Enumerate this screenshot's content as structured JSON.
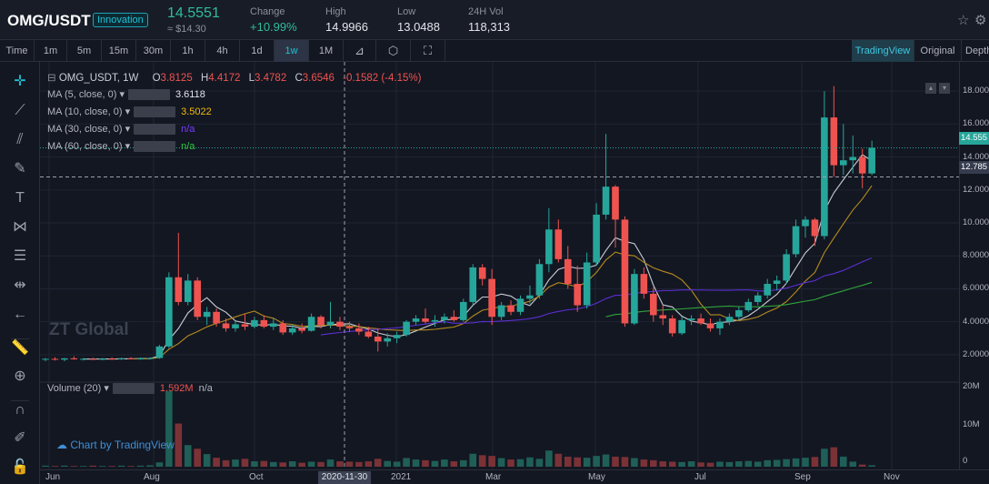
{
  "header": {
    "pair": "OMG/USDT",
    "badge": "Innovation",
    "price": "14.5551",
    "price_usd": "≈ $14.30",
    "stats": [
      {
        "label": "Change",
        "value": "+10.99%"
      },
      {
        "label": "High",
        "value": "14.9966"
      },
      {
        "label": "Low",
        "value": "13.0488"
      },
      {
        "label": "24H Vol",
        "value": "118,313"
      }
    ]
  },
  "toolbar": {
    "intervals": [
      "Time",
      "1m",
      "5m",
      "15m",
      "30m",
      "1h",
      "4h",
      "1d",
      "1w",
      "1M"
    ],
    "active_interval": "1w",
    "views": [
      "TradingView",
      "Original",
      "Depth"
    ]
  },
  "legend": {
    "symbol": "OMG_USDT, 1W",
    "o_label": "O",
    "o": "3.8125",
    "h_label": "H",
    "h": "4.4172",
    "l_label": "L",
    "l": "3.4782",
    "c_label": "C",
    "c": "3.6546",
    "change": "-0.1582 (-4.15%)"
  },
  "indicators": [
    {
      "label": "MA (5, close, 0)",
      "value": "3.6118",
      "color": "#e1e4ea"
    },
    {
      "label": "MA (10, close, 0)",
      "value": "3.5022",
      "color": "#f0b90b"
    },
    {
      "label": "MA (30, close, 0)",
      "value": "n/a",
      "color": "#7a3cff"
    },
    {
      "label": "MA (60, close, 0)",
      "value": "n/a",
      "color": "#2ecc40"
    }
  ],
  "volume_indicator": {
    "label": "Volume (20)",
    "value": "1.592M",
    "extra": "n/a"
  },
  "watermark": "ZT Global",
  "brand": "Chart by TradingView",
  "price_tags": {
    "last": "14.555",
    "crosshair": "12.785"
  },
  "y_axis_labels": [
    "18.0000",
    "16.0000",
    "14.0000",
    "12.0000",
    "10.0000",
    "8.0000",
    "6.0000",
    "4.0000",
    "2.0000"
  ],
  "vol_axis_labels": [
    "20M",
    "10M",
    "0"
  ],
  "x_axis_labels": [
    "Jun",
    "Aug",
    "Oct",
    "2021",
    "Mar",
    "May",
    "Jul",
    "Sep",
    "Nov"
  ],
  "x_selected": "2020-11-30",
  "colors": {
    "up": "#26a69a",
    "down": "#ef5350",
    "bg": "#131722",
    "accent": "#1fc0d4"
  },
  "chart_data": {
    "type": "candlestick",
    "interval": "1W",
    "ylim": [
      1,
      19
    ],
    "candles": [
      [
        1.7,
        1.8,
        1.6,
        1.75
      ],
      [
        1.75,
        1.85,
        1.65,
        1.7
      ],
      [
        1.7,
        1.8,
        1.6,
        1.78
      ],
      [
        1.78,
        1.9,
        1.7,
        1.72
      ],
      [
        1.72,
        1.8,
        1.65,
        1.75
      ],
      [
        1.75,
        1.82,
        1.68,
        1.73
      ],
      [
        1.73,
        1.8,
        1.66,
        1.76
      ],
      [
        1.76,
        1.84,
        1.7,
        1.74
      ],
      [
        1.74,
        1.82,
        1.68,
        1.78
      ],
      [
        1.78,
        1.85,
        1.72,
        1.75
      ],
      [
        1.75,
        1.83,
        1.7,
        1.77
      ],
      [
        1.77,
        1.85,
        1.7,
        1.8
      ],
      [
        1.8,
        2.6,
        1.75,
        2.5
      ],
      [
        2.5,
        7.0,
        2.4,
        6.7
      ],
      [
        6.7,
        9.4,
        5.0,
        5.2
      ],
      [
        5.2,
        6.9,
        5.0,
        6.5
      ],
      [
        6.5,
        6.7,
        4.1,
        4.3
      ],
      [
        4.3,
        4.9,
        3.8,
        4.6
      ],
      [
        4.6,
        4.8,
        3.7,
        3.9
      ],
      [
        3.9,
        4.2,
        3.4,
        3.6
      ],
      [
        3.6,
        4.0,
        3.4,
        3.85
      ],
      [
        3.85,
        4.5,
        3.5,
        3.7
      ],
      [
        3.7,
        4.3,
        3.6,
        4.1
      ],
      [
        4.1,
        4.4,
        3.6,
        3.7
      ],
      [
        3.7,
        4.2,
        3.5,
        3.9
      ],
      [
        3.9,
        4.1,
        3.2,
        3.35
      ],
      [
        3.35,
        3.8,
        3.2,
        3.6
      ],
      [
        3.6,
        3.9,
        3.3,
        3.45
      ],
      [
        3.45,
        4.5,
        3.4,
        4.3
      ],
      [
        4.3,
        4.4,
        3.6,
        3.8
      ],
      [
        3.8,
        5.2,
        3.6,
        4.0
      ],
      [
        4.0,
        4.3,
        3.5,
        3.7
      ],
      [
        3.7,
        4.0,
        3.4,
        3.6
      ],
      [
        3.6,
        3.9,
        3.2,
        3.4
      ],
      [
        3.4,
        3.7,
        3.0,
        3.1
      ],
      [
        3.1,
        3.6,
        2.2,
        2.8
      ],
      [
        2.8,
        3.3,
        2.5,
        3.0
      ],
      [
        3.0,
        3.4,
        2.7,
        3.2
      ],
      [
        3.2,
        4.1,
        3.1,
        4.0
      ],
      [
        4.0,
        4.4,
        3.8,
        4.2
      ],
      [
        4.2,
        4.8,
        3.9,
        4.0
      ],
      [
        4.0,
        4.4,
        3.7,
        4.1
      ],
      [
        4.1,
        4.5,
        3.9,
        4.3
      ],
      [
        4.3,
        4.7,
        4.0,
        4.1
      ],
      [
        4.1,
        5.4,
        4.0,
        5.2
      ],
      [
        5.2,
        7.5,
        5.0,
        7.3
      ],
      [
        7.3,
        7.5,
        6.2,
        6.6
      ],
      [
        6.6,
        7.2,
        3.8,
        4.3
      ],
      [
        4.3,
        5.2,
        4.1,
        5.0
      ],
      [
        5.0,
        5.3,
        4.4,
        4.6
      ],
      [
        4.6,
        5.6,
        4.4,
        5.4
      ],
      [
        5.4,
        6.2,
        5.1,
        5.6
      ],
      [
        5.6,
        7.8,
        5.4,
        7.5
      ],
      [
        7.5,
        10.9,
        7.0,
        9.6
      ],
      [
        9.6,
        10.2,
        7.6,
        7.8
      ],
      [
        7.8,
        8.6,
        6.0,
        6.3
      ],
      [
        6.3,
        7.4,
        4.6,
        5.0
      ],
      [
        5.0,
        8.2,
        4.8,
        7.6
      ],
      [
        7.6,
        11.2,
        7.4,
        10.5
      ],
      [
        10.5,
        15.4,
        10.2,
        12.2
      ],
      [
        12.2,
        12.3,
        8.5,
        10.2
      ],
      [
        10.2,
        10.4,
        3.7,
        3.9
      ],
      [
        3.9,
        7.2,
        3.8,
        6.9
      ],
      [
        6.9,
        7.3,
        5.4,
        5.7
      ],
      [
        5.7,
        6.1,
        4.0,
        4.4
      ],
      [
        4.4,
        5.0,
        3.8,
        4.2
      ],
      [
        4.2,
        4.4,
        3.1,
        3.3
      ],
      [
        3.3,
        4.3,
        3.2,
        4.1
      ],
      [
        4.1,
        4.4,
        3.8,
        4.2
      ],
      [
        4.2,
        4.5,
        3.8,
        3.9
      ],
      [
        3.9,
        4.2,
        3.4,
        3.6
      ],
      [
        3.6,
        4.2,
        3.2,
        4.0
      ],
      [
        4.0,
        4.5,
        3.8,
        4.3
      ],
      [
        4.3,
        4.9,
        4.1,
        4.7
      ],
      [
        4.7,
        5.4,
        4.6,
        5.2
      ],
      [
        5.2,
        5.8,
        5.0,
        5.6
      ],
      [
        5.6,
        6.6,
        5.4,
        6.3
      ],
      [
        6.3,
        6.8,
        5.9,
        6.5
      ],
      [
        6.5,
        8.4,
        6.3,
        8.1
      ],
      [
        8.1,
        10.2,
        7.9,
        9.8
      ],
      [
        9.8,
        10.4,
        9.1,
        10.2
      ],
      [
        10.2,
        10.3,
        8.6,
        9.2
      ],
      [
        9.2,
        18.0,
        9.0,
        16.4
      ],
      [
        16.4,
        18.3,
        12.8,
        13.5
      ],
      [
        13.5,
        16.0,
        12.9,
        13.8
      ],
      [
        13.8,
        15.3,
        13.0,
        14.0
      ],
      [
        14.0,
        14.5,
        12.1,
        13.0
      ],
      [
        13.0,
        14.99,
        12.9,
        14.56
      ]
    ],
    "volume": [
      0.3,
      0.2,
      0.3,
      0.2,
      0.2,
      0.3,
      0.2,
      0.2,
      0.3,
      0.2,
      0.3,
      0.4,
      1.2,
      21.0,
      12.0,
      6.0,
      5.0,
      3.5,
      2.5,
      1.8,
      2.0,
      2.2,
      1.5,
      1.6,
      1.3,
      1.2,
      1.5,
      1.1,
      1.4,
      1.3,
      2.0,
      1.5,
      1.4,
      1.3,
      1.5,
      2.2,
      1.6,
      1.4,
      2.4,
      2.0,
      1.8,
      1.6,
      2.0,
      1.5,
      1.8,
      3.6,
      3.2,
      3.0,
      2.4,
      2.0,
      2.1,
      2.6,
      2.2,
      4.5,
      3.6,
      2.8,
      2.6,
      2.5,
      3.0,
      3.4,
      2.8,
      2.7,
      2.4,
      2.0,
      1.8,
      1.5,
      1.4,
      1.3,
      1.5,
      1.2,
      1.1,
      1.4,
      1.3,
      1.5,
      1.6,
      1.4,
      1.8,
      1.9,
      2.1,
      2.3,
      2.5,
      2.7,
      5.0,
      5.4,
      2.8,
      1.4,
      0.6,
      0.4
    ],
    "ma5": null,
    "ma10": null,
    "ma30": null,
    "ma60": null,
    "last_price_line": 14.555,
    "crosshair_price": 12.785
  }
}
